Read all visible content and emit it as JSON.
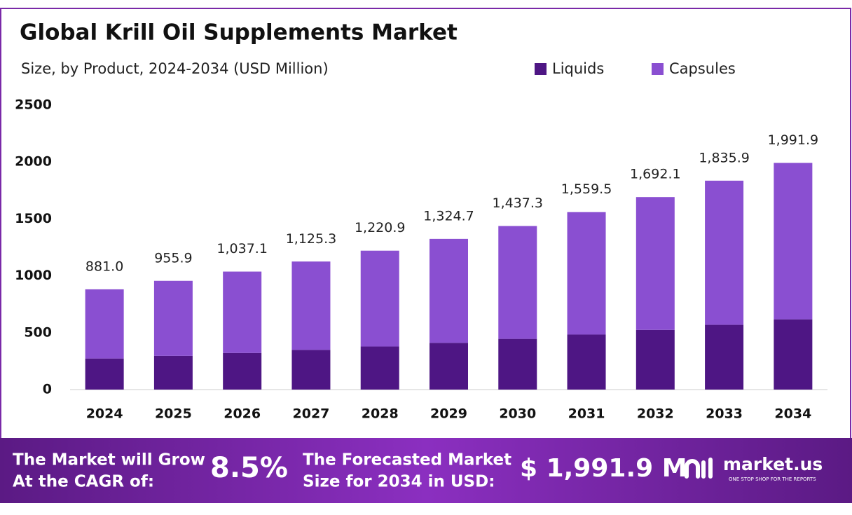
{
  "chart_data": {
    "type": "stacked_bar",
    "title": "Global Krill Oil Supplements Market",
    "subtitle": "Size, by Product, 2024-2034 (USD Million)",
    "categories": [
      "2024",
      "2025",
      "2026",
      "2027",
      "2028",
      "2029",
      "2030",
      "2031",
      "2032",
      "2033",
      "2034"
    ],
    "series": [
      {
        "name": "Liquids",
        "color": "#4e1684",
        "values": [
          273.1,
          296.3,
          321.5,
          348.8,
          378.5,
          410.7,
          445.6,
          483.5,
          524.6,
          569.1,
          617.5
        ]
      },
      {
        "name": "Capsules",
        "color": "#8a4fd1",
        "values": [
          607.9,
          659.6,
          715.6,
          776.5,
          842.4,
          914.0,
          991.7,
          1076.0,
          1167.5,
          1266.8,
          1374.4
        ]
      }
    ],
    "totals": [
      881.0,
      955.9,
      1037.1,
      1125.3,
      1220.9,
      1324.7,
      1437.3,
      1559.5,
      1692.1,
      1835.9,
      1991.9
    ],
    "total_labels": [
      "881.0",
      "955.9",
      "1,037.1",
      "1,125.3",
      "1,220.9",
      "1,324.7",
      "1,437.3",
      "1,559.5",
      "1,692.1",
      "1,835.9",
      "1,991.9"
    ],
    "ylim": [
      0,
      2500
    ],
    "yticks": [
      0,
      500,
      1000,
      1500,
      2000,
      2500
    ],
    "grid": false
  },
  "footer": {
    "cagr_text": [
      "The Market will Grow",
      "At the CAGR of:"
    ],
    "cagr_value": "8.5%",
    "forecast_text": [
      "The Forecasted Market",
      "Size for 2034 in USD:"
    ],
    "forecast_value": "$ 1,991.9 M",
    "brand": "market.us",
    "tagline": "ONE STOP SHOP FOR THE REPORTS"
  }
}
